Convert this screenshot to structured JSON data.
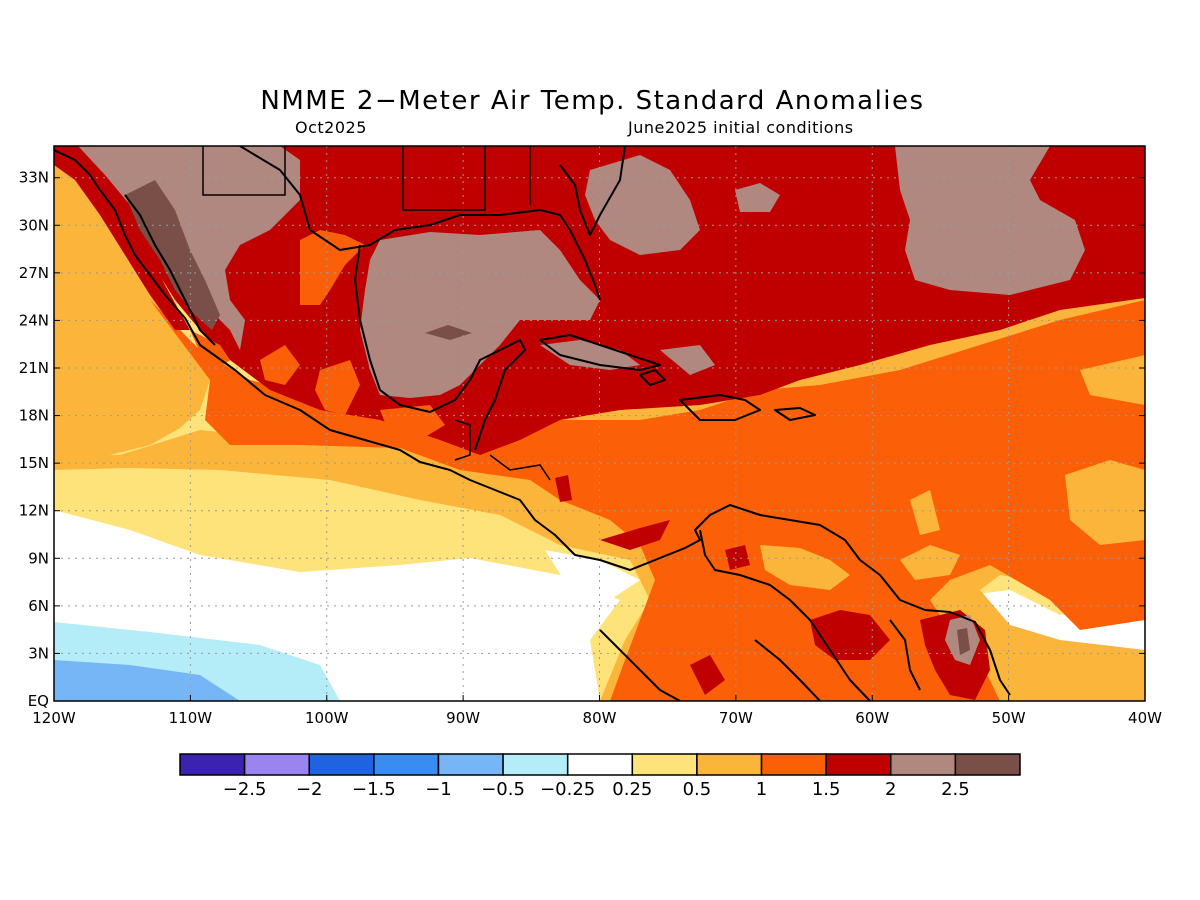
{
  "title": "NMME 2−Meter Air Temp. Standard Anomalies",
  "subtitle_left": "Oct2025",
  "subtitle_right": "June2025 initial conditions",
  "map": {
    "lon_range": [
      -120,
      -40
    ],
    "lat_range": [
      0,
      35
    ],
    "lat_ticks": [
      {
        "value": 33,
        "label": "33N"
      },
      {
        "value": 30,
        "label": "30N"
      },
      {
        "value": 27,
        "label": "27N"
      },
      {
        "value": 24,
        "label": "24N"
      },
      {
        "value": 21,
        "label": "21N"
      },
      {
        "value": 18,
        "label": "18N"
      },
      {
        "value": 15,
        "label": "15N"
      },
      {
        "value": 12,
        "label": "12N"
      },
      {
        "value": 9,
        "label": "9N"
      },
      {
        "value": 6,
        "label": "6N"
      },
      {
        "value": 3,
        "label": "3N"
      },
      {
        "value": 0,
        "label": "EQ"
      }
    ],
    "lon_ticks": [
      {
        "value": -120,
        "label": "120W"
      },
      {
        "value": -110,
        "label": "110W"
      },
      {
        "value": -100,
        "label": "100W"
      },
      {
        "value": -90,
        "label": "90W"
      },
      {
        "value": -80,
        "label": "80W"
      },
      {
        "value": -70,
        "label": "70W"
      },
      {
        "value": -60,
        "label": "60W"
      },
      {
        "value": -50,
        "label": "50W"
      },
      {
        "value": -40,
        "label": "40W"
      }
    ],
    "grid": "dotted",
    "coastlines": true,
    "borders": true
  },
  "legend": {
    "colors": [
      "#3b23b0",
      "#9c84f0",
      "#1f63e0",
      "#3a8df0",
      "#76b6f6",
      "#b4ecf8",
      "#ffffff",
      "#fee37a",
      "#fbb53a",
      "#fb6008",
      "#c00000",
      "#b08880",
      "#7a4f48"
    ],
    "labels": [
      "−2.5",
      "−2",
      "−1.5",
      "−1",
      "−0.5",
      "−0.25",
      "0.25",
      "0.5",
      "1",
      "1.5",
      "2",
      "2.5"
    ]
  }
}
